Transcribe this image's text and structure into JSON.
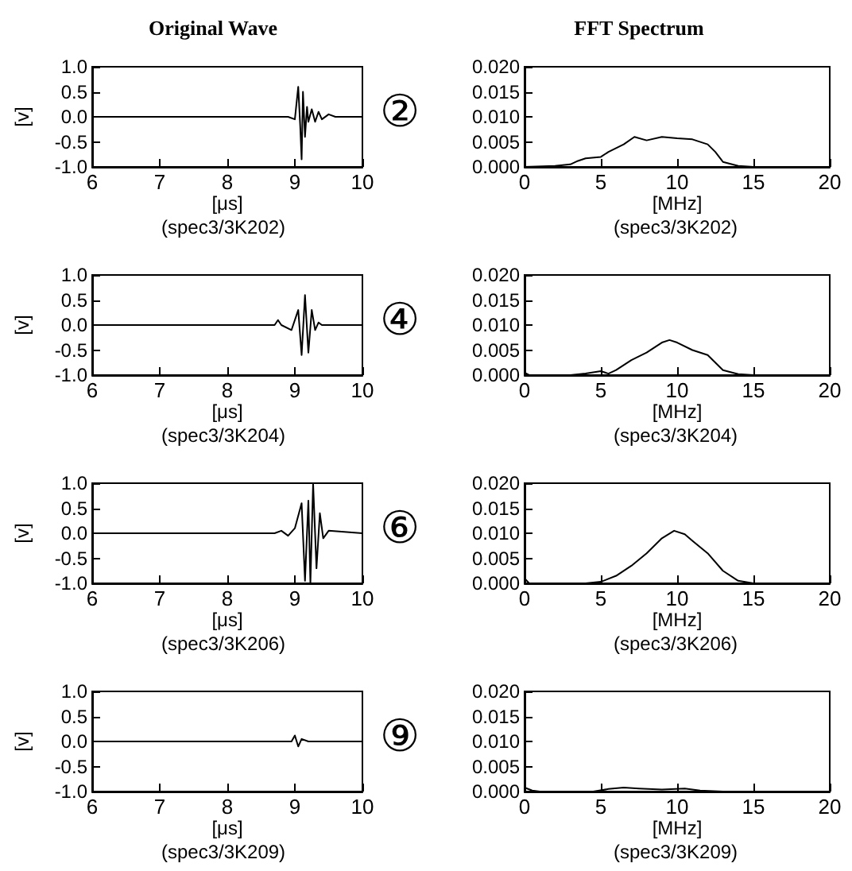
{
  "chart_data": [
    {
      "type": "line",
      "title": "Original Wave",
      "xlabel": "[μs]",
      "ylabel": "[v]",
      "annotations": [
        "(spec3/3K202)",
        "②"
      ],
      "color": "#000000",
      "xlim": [
        6,
        10
      ],
      "xticks": [
        6,
        7,
        8,
        9,
        10
      ],
      "ylim": [
        -1.0,
        1.0
      ],
      "yticks": [
        {
          "value": 1.0,
          "label": "1.0"
        },
        {
          "value": 0.5,
          "label": "0.5"
        },
        {
          "value": 0,
          "label": "0.0"
        },
        {
          "value": -0.5,
          "label": "-0.5"
        },
        {
          "value": -1.0,
          "label": "-1.0"
        }
      ],
      "x": [
        6,
        7,
        8,
        8.9,
        9.0,
        9.05,
        9.08,
        9.1,
        9.12,
        9.15,
        9.18,
        9.2,
        9.25,
        9.3,
        9.35,
        9.4,
        9.5,
        9.6,
        10
      ],
      "values": [
        0,
        0,
        0,
        0,
        -0.05,
        0.6,
        -0.2,
        -0.85,
        0.5,
        -0.4,
        0.2,
        -0.1,
        0.15,
        -0.1,
        0.1,
        -0.05,
        0.05,
        0,
        0
      ]
    },
    {
      "type": "line",
      "title": "FFT Spectrum",
      "xlabel": "[MHz]",
      "annotations": [
        "(spec3/3K202)"
      ],
      "color": "#000000",
      "xlim": [
        0,
        20
      ],
      "xticks": [
        0,
        5,
        10,
        15,
        20
      ],
      "ylim": [
        0,
        0.02
      ],
      "yticks": [
        {
          "value": 0.02,
          "label": "0.020"
        },
        {
          "value": 0.015,
          "label": "0.015"
        },
        {
          "value": 0.01,
          "label": "0.010"
        },
        {
          "value": 0.005,
          "label": "0.005"
        },
        {
          "value": 0,
          "label": "0.000"
        }
      ],
      "x": [
        0,
        2,
        3,
        3.5,
        4,
        5,
        5.5,
        6.5,
        7.2,
        8,
        9,
        10,
        11,
        12,
        12.5,
        13,
        14,
        15,
        20
      ],
      "values": [
        0,
        0.0002,
        0.0005,
        0.0012,
        0.0017,
        0.002,
        0.003,
        0.0045,
        0.006,
        0.0053,
        0.006,
        0.0057,
        0.0055,
        0.0045,
        0.003,
        0.001,
        0.0002,
        0,
        0
      ]
    },
    {
      "type": "line",
      "xlabel": "[μs]",
      "ylabel": "[v]",
      "annotations": [
        "(spec3/3K204)",
        "④"
      ],
      "color": "#000000",
      "xlim": [
        6,
        10
      ],
      "xticks": [
        6,
        7,
        8,
        9,
        10
      ],
      "ylim": [
        -1.0,
        1.0
      ],
      "yticks": [
        {
          "value": 1.0,
          "label": "1.0"
        },
        {
          "value": 0.5,
          "label": "0.5"
        },
        {
          "value": 0,
          "label": "0.0"
        },
        {
          "value": -0.5,
          "label": "-0.5"
        },
        {
          "value": -1.0,
          "label": "-1.0"
        }
      ],
      "x": [
        6,
        7,
        8,
        8.7,
        8.75,
        8.8,
        8.95,
        9.05,
        9.1,
        9.15,
        9.2,
        9.25,
        9.3,
        9.35,
        9.4,
        10
      ],
      "values": [
        0,
        0,
        0,
        0,
        0.1,
        0,
        -0.1,
        0.3,
        -0.6,
        0.6,
        -0.55,
        0.3,
        -0.1,
        0.05,
        0,
        0
      ]
    },
    {
      "type": "line",
      "xlabel": "[MHz]",
      "annotations": [
        "(spec3/3K204)"
      ],
      "color": "#000000",
      "xlim": [
        0,
        20
      ],
      "xticks": [
        0,
        5,
        10,
        15,
        20
      ],
      "ylim": [
        0,
        0.02
      ],
      "yticks": [
        {
          "value": 0.02,
          "label": "0.020"
        },
        {
          "value": 0.015,
          "label": "0.015"
        },
        {
          "value": 0.01,
          "label": "0.010"
        },
        {
          "value": 0.005,
          "label": "0.005"
        },
        {
          "value": 0,
          "label": "0.000"
        }
      ],
      "x": [
        0,
        0.3,
        3,
        4,
        5,
        5.5,
        6,
        7,
        8,
        9,
        9.5,
        10,
        11,
        12,
        13,
        14,
        15,
        20
      ],
      "values": [
        0.0005,
        0,
        0,
        0.0003,
        0.0008,
        0.0003,
        0.001,
        0.003,
        0.0045,
        0.0065,
        0.007,
        0.0065,
        0.005,
        0.004,
        0.001,
        0.0002,
        0,
        0
      ]
    },
    {
      "type": "line",
      "xlabel": "[μs]",
      "ylabel": "[v]",
      "annotations": [
        "(spec3/3K206)",
        "⑥"
      ],
      "color": "#000000",
      "xlim": [
        6,
        10
      ],
      "xticks": [
        6,
        7,
        8,
        9,
        10
      ],
      "ylim": [
        -1.0,
        1.0
      ],
      "yticks": [
        {
          "value": 1.0,
          "label": "1.0"
        },
        {
          "value": 0.5,
          "label": "0.5"
        },
        {
          "value": 0,
          "label": "0.0"
        },
        {
          "value": -0.5,
          "label": "-0.5"
        },
        {
          "value": -1.0,
          "label": "-1.0"
        }
      ],
      "x": [
        6,
        7,
        8,
        8.7,
        8.8,
        8.9,
        9.0,
        9.1,
        9.15,
        9.2,
        9.23,
        9.27,
        9.32,
        9.37,
        9.42,
        9.5,
        10
      ],
      "values": [
        0,
        0,
        0,
        0,
        0.05,
        -0.05,
        0.1,
        0.6,
        -0.95,
        0.65,
        -1.0,
        1.0,
        -0.7,
        0.4,
        -0.1,
        0.05,
        0
      ]
    },
    {
      "type": "line",
      "xlabel": "[MHz]",
      "annotations": [
        "(spec3/3K206)"
      ],
      "color": "#000000",
      "xlim": [
        0,
        20
      ],
      "xticks": [
        0,
        5,
        10,
        15,
        20
      ],
      "ylim": [
        0,
        0.02
      ],
      "yticks": [
        {
          "value": 0.02,
          "label": "0.020"
        },
        {
          "value": 0.015,
          "label": "0.015"
        },
        {
          "value": 0.01,
          "label": "0.010"
        },
        {
          "value": 0.005,
          "label": "0.005"
        },
        {
          "value": 0,
          "label": "0.000"
        }
      ],
      "x": [
        0,
        0.3,
        4,
        5,
        6,
        7,
        8,
        9,
        9.8,
        10.5,
        11,
        12,
        13,
        14,
        15,
        20
      ],
      "values": [
        0.001,
        0,
        0,
        0.0003,
        0.0015,
        0.0035,
        0.006,
        0.009,
        0.0105,
        0.0098,
        0.0085,
        0.006,
        0.0025,
        0.0005,
        0,
        0
      ]
    },
    {
      "type": "line",
      "xlabel": "[μs]",
      "ylabel": "[v]",
      "annotations": [
        "(spec3/3K209)",
        "⑨"
      ],
      "color": "#000000",
      "xlim": [
        6,
        10
      ],
      "xticks": [
        6,
        7,
        8,
        9,
        10
      ],
      "ylim": [
        -1.0,
        1.0
      ],
      "yticks": [
        {
          "value": 1.0,
          "label": "1.0"
        },
        {
          "value": 0.5,
          "label": "0.5"
        },
        {
          "value": 0,
          "label": "0.0"
        },
        {
          "value": -0.5,
          "label": "-0.5"
        },
        {
          "value": -1.0,
          "label": "-1.0"
        }
      ],
      "x": [
        6,
        7,
        8,
        8.9,
        8.95,
        9.0,
        9.05,
        9.1,
        9.2,
        10
      ],
      "values": [
        0,
        0,
        0,
        0,
        0,
        0.12,
        -0.1,
        0.05,
        0,
        0
      ]
    },
    {
      "type": "line",
      "xlabel": "[MHz]",
      "annotations": [
        "(spec3/3K209)"
      ],
      "color": "#000000",
      "xlim": [
        0,
        20
      ],
      "xticks": [
        0,
        5,
        10,
        15,
        20
      ],
      "ylim": [
        0,
        0.02
      ],
      "yticks": [
        {
          "value": 0.02,
          "label": "0.020"
        },
        {
          "value": 0.015,
          "label": "0.015"
        },
        {
          "value": 0.01,
          "label": "0.010"
        },
        {
          "value": 0.005,
          "label": "0.005"
        },
        {
          "value": 0,
          "label": "0.000"
        }
      ],
      "x": [
        0,
        0.5,
        1,
        4.5,
        5.5,
        6.5,
        7.5,
        9,
        10.5,
        11.5,
        13,
        20
      ],
      "values": [
        0.0008,
        0.0002,
        0,
        0,
        0.0005,
        0.0008,
        0.0006,
        0.0004,
        0.0006,
        0.0002,
        0,
        0
      ]
    }
  ]
}
